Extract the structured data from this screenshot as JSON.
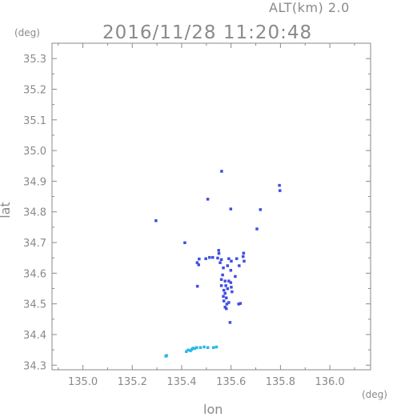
{
  "header": {
    "alt_label": "ALT(km) 2.0",
    "time_label": "2016/11/28 11:20:48"
  },
  "units": {
    "y_unit": "(deg)",
    "x_unit": "(deg)"
  },
  "chart_data": {
    "type": "scatter",
    "title": "2016/11/28 11:20:48",
    "subtitle": "ALT(km) 2.0",
    "xlabel": "lon",
    "ylabel": "lat",
    "xunit": "(deg)",
    "yunit": "(deg)",
    "xlim": [
      134.875,
      136.165
    ],
    "ylim": [
      34.285,
      35.35
    ],
    "xticks": [
      "135.0",
      "135.2",
      "135.4",
      "135.6",
      "135.8",
      "136.0"
    ],
    "yticks": [
      "34.3",
      "34.4",
      "34.5",
      "34.6",
      "34.7",
      "34.8",
      "34.9",
      "35.0",
      "35.1",
      "35.2",
      "35.3"
    ],
    "grid": false,
    "colors": {
      "axis": "#8a8a8a",
      "echo_strong": "#3f4fe0",
      "echo_weak": "#29b8e8"
    },
    "series": [
      {
        "color": "#3f4fe0",
        "points": [
          [
            135.561,
            34.933
          ],
          [
            135.795,
            34.887
          ],
          [
            135.797,
            34.87
          ],
          [
            135.598,
            34.81
          ],
          [
            135.718,
            34.808
          ],
          [
            135.505,
            34.842
          ],
          [
            135.704,
            34.745
          ],
          [
            135.295,
            34.772
          ],
          [
            135.412,
            34.7
          ],
          [
            135.549,
            34.675
          ],
          [
            135.55,
            34.665
          ],
          [
            135.512,
            34.652
          ],
          [
            135.525,
            34.652
          ],
          [
            135.545,
            34.65
          ],
          [
            135.56,
            34.645
          ],
          [
            135.555,
            34.635
          ],
          [
            135.47,
            34.647
          ],
          [
            135.497,
            34.648
          ],
          [
            135.59,
            34.648
          ],
          [
            135.6,
            34.64
          ],
          [
            135.622,
            34.648
          ],
          [
            135.632,
            34.625
          ],
          [
            135.65,
            34.666
          ],
          [
            135.648,
            34.655
          ],
          [
            135.652,
            34.64
          ],
          [
            135.568,
            34.618
          ],
          [
            135.585,
            34.625
          ],
          [
            135.598,
            34.61
          ],
          [
            135.462,
            34.635
          ],
          [
            135.468,
            34.628
          ],
          [
            135.616,
            34.59
          ],
          [
            135.565,
            34.595
          ],
          [
            135.56,
            34.58
          ],
          [
            135.575,
            34.575
          ],
          [
            135.578,
            34.56
          ],
          [
            135.585,
            34.55
          ],
          [
            135.56,
            34.56
          ],
          [
            135.57,
            34.545
          ],
          [
            135.575,
            34.535
          ],
          [
            135.568,
            34.525
          ],
          [
            135.58,
            34.52
          ],
          [
            135.57,
            34.51
          ],
          [
            135.582,
            34.5
          ],
          [
            135.575,
            34.49
          ],
          [
            135.59,
            34.505
          ],
          [
            135.598,
            34.57
          ],
          [
            135.603,
            34.54
          ],
          [
            135.59,
            34.575
          ],
          [
            135.63,
            34.5
          ],
          [
            135.637,
            34.502
          ],
          [
            135.463,
            34.558
          ],
          [
            135.595,
            34.44
          ],
          [
            135.58,
            34.485
          ],
          [
            135.6,
            34.555
          ]
        ]
      },
      {
        "color": "#29b8e8",
        "points": [
          [
            135.335,
            34.33
          ],
          [
            135.338,
            34.332
          ],
          [
            135.418,
            34.345
          ],
          [
            135.425,
            34.35
          ],
          [
            135.435,
            34.348
          ],
          [
            135.44,
            34.352
          ],
          [
            135.445,
            34.356
          ],
          [
            135.452,
            34.355
          ],
          [
            135.46,
            34.358
          ],
          [
            135.475,
            34.358
          ],
          [
            135.49,
            34.36
          ],
          [
            135.505,
            34.358
          ],
          [
            135.528,
            34.358
          ],
          [
            135.54,
            34.36
          ]
        ]
      }
    ]
  }
}
